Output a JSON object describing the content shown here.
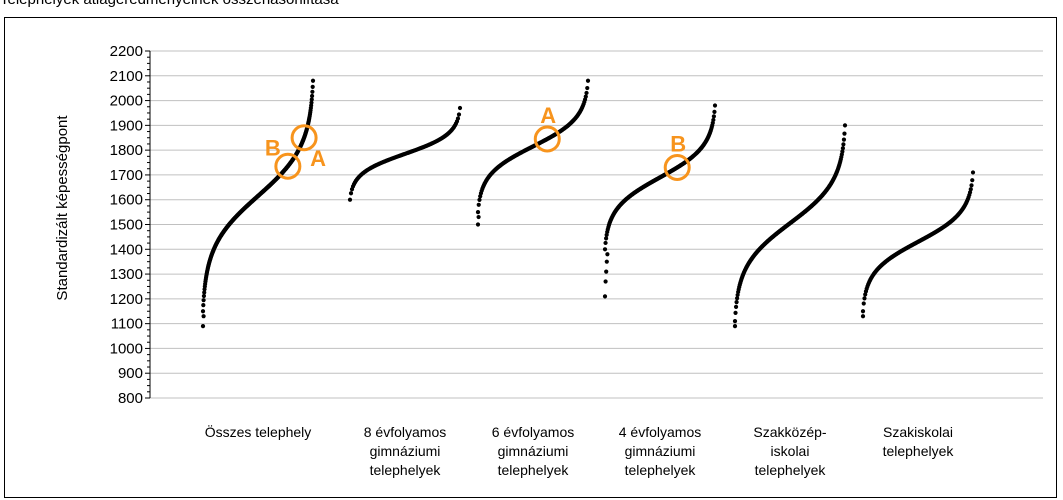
{
  "page": {
    "title": "Telephelyek átlageredményeinek összehasonlítása"
  },
  "colors": {
    "points": "#000000",
    "grid": "#c0c0c0",
    "marker": "#f7941d"
  },
  "chart_data": {
    "type": "scatter",
    "title": "",
    "ylabel": "Standardizált képességpont",
    "xlabel": "",
    "ylim": [
      800,
      2200
    ],
    "yticks": [
      800,
      900,
      1000,
      1100,
      1200,
      1300,
      1400,
      1500,
      1600,
      1700,
      1800,
      1900,
      2000,
      2100,
      2200
    ],
    "grid": true,
    "legend": "none",
    "categories": [
      {
        "label": [
          "Összes telephely"
        ],
        "min": 1090,
        "max": 2080,
        "n": 360,
        "k": 6,
        "outliers_low": [
          1090,
          1130
        ]
      },
      {
        "label": [
          "8 évfolyamos",
          "gimnáziumi",
          "telephelyek"
        ],
        "min": 1600,
        "max": 1970,
        "n": 110,
        "k": 3,
        "outliers_low": []
      },
      {
        "label": [
          "6 évfolyamos",
          "gimnáziumi",
          "telephelyek"
        ],
        "min": 1500,
        "max": 2080,
        "n": 150,
        "k": 4,
        "outliers_low": [
          1500,
          1530
        ]
      },
      {
        "label": [
          "4 évfolyamos",
          "gimnáziumi",
          "telephelyek"
        ],
        "min": 1210,
        "max": 1980,
        "n": 200,
        "k": 5,
        "outliers_low": [
          1210,
          1270,
          1310,
          1350,
          1380
        ]
      },
      {
        "label": [
          "Szakközép-",
          "iskolai",
          "telephelyek"
        ],
        "min": 1090,
        "max": 1900,
        "n": 210,
        "k": 5,
        "outliers_low": [
          1090
        ]
      },
      {
        "label": [
          "Szakiskolai",
          "telephelyek"
        ],
        "min": 1130,
        "max": 1710,
        "n": 150,
        "k": 4,
        "outliers_low": [
          1130
        ]
      }
    ],
    "annotations": [
      {
        "label": "A",
        "category": 0,
        "y": 1850,
        "label_side": "right-below"
      },
      {
        "label": "B",
        "category": 0,
        "y": 1735,
        "label_side": "left-above"
      },
      {
        "label": "A",
        "category": 2,
        "y": 1845,
        "label_side": "above"
      },
      {
        "label": "B",
        "category": 3,
        "y": 1730,
        "label_side": "above"
      }
    ]
  }
}
